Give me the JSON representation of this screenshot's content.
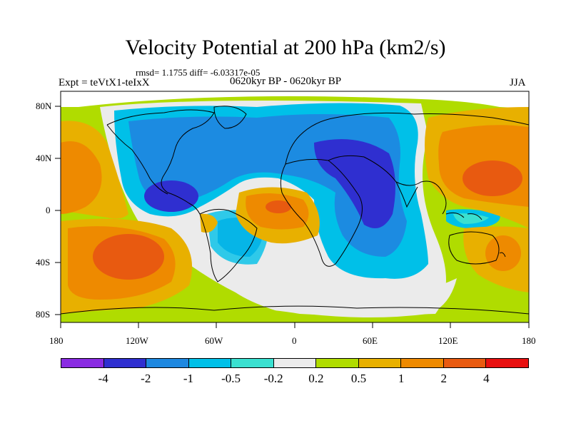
{
  "title": "Velocity Potential at 200 hPa (km2/s)",
  "stats": "rmsd= 1.1755 diff= -6.03317e-05",
  "expt": "Expt = teVtX1-teIxX",
  "period": "0620kyr BP - 0620kyr BP",
  "season": "JJA",
  "x_ticks": [
    "180",
    "120W",
    "60W",
    "0",
    "60E",
    "120E",
    "180"
  ],
  "y_ticks": [
    "80N",
    "40N",
    "0",
    "40S",
    "80S"
  ],
  "colorbar": {
    "colors": [
      "#8a2be2",
      "#2f2fd0",
      "#1e88e0",
      "#00c0e8",
      "#3ae0d0",
      "#ebebeb",
      "#b0dc00",
      "#e8b000",
      "#ee8a00",
      "#e85a10",
      "#e81010"
    ],
    "labels": [
      "-4",
      "-2",
      "-1",
      "-0.5",
      "-0.2",
      "0.2",
      "0.5",
      "1",
      "2",
      "4"
    ]
  }
}
